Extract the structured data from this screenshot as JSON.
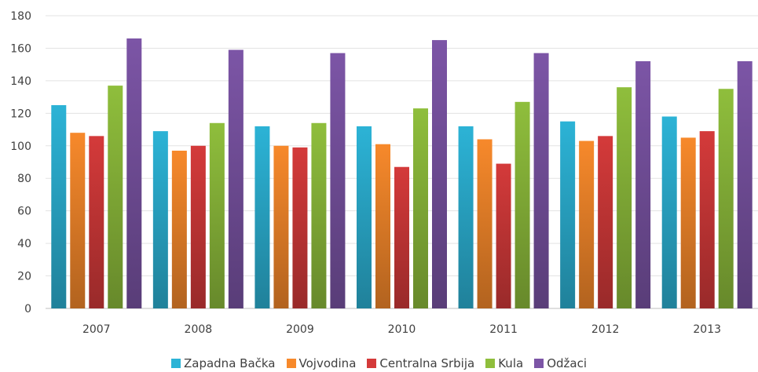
{
  "chart_data": {
    "type": "bar",
    "categories": [
      "2007",
      "2008",
      "2009",
      "2010",
      "2011",
      "2012",
      "2013"
    ],
    "series": [
      {
        "name": "Zapadna Bačka",
        "color": "#2cb3d6",
        "values": [
          125,
          109,
          112,
          112,
          112,
          115,
          118
        ]
      },
      {
        "name": "Vojvodina",
        "color": "#f7892b",
        "values": [
          108,
          97,
          100,
          101,
          104,
          103,
          105
        ]
      },
      {
        "name": "Centralna Srbija",
        "color": "#d43a3a",
        "values": [
          106,
          100,
          99,
          87,
          89,
          106,
          109
        ]
      },
      {
        "name": "Kula",
        "color": "#8fbe3c",
        "values": [
          137,
          114,
          114,
          123,
          127,
          136,
          135
        ]
      },
      {
        "name": "Odžaci",
        "color": "#7c55a6",
        "values": [
          166,
          159,
          157,
          165,
          157,
          152,
          152
        ]
      }
    ],
    "yticks": [
      "0",
      "20",
      "40",
      "60",
      "80",
      "100",
      "120",
      "140",
      "160",
      "180"
    ],
    "ylim": [
      0,
      180
    ],
    "grid": true,
    "legend_position": "bottom",
    "title": "",
    "xlabel": "",
    "ylabel": ""
  }
}
